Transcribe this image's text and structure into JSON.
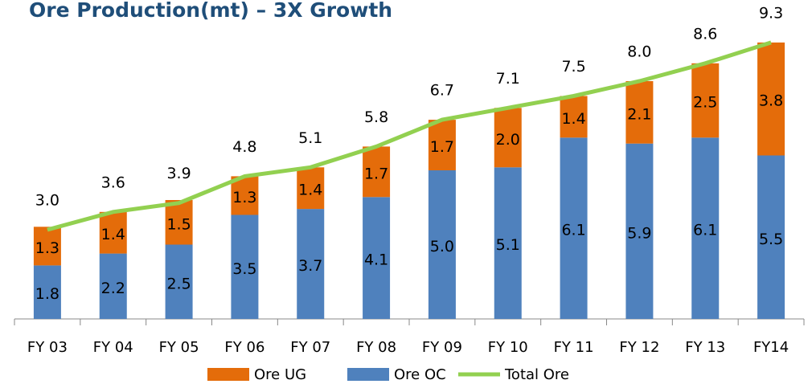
{
  "chart_data": {
    "type": "bar",
    "stacked": true,
    "title": "Ore Production(mt) – 3X Growth",
    "categories": [
      "FY 03",
      "FY 04",
      "FY 05",
      "FY 06",
      "FY 07",
      "FY 08",
      "FY 09",
      "FY 10",
      "FY 11",
      "FY 12",
      "FY 13",
      "FY14"
    ],
    "series": [
      {
        "name": "Ore UG",
        "type": "bar",
        "color": "#e46c0a",
        "values": [
          1.3,
          1.4,
          1.5,
          1.3,
          1.4,
          1.7,
          1.7,
          2.0,
          1.4,
          2.1,
          2.5,
          3.8
        ],
        "value_labels": [
          "1.3",
          "1.4",
          "1.5",
          "1.3",
          "1.4",
          "1.7",
          "1.7",
          "2.0",
          "1.4",
          "2.1",
          "2.5",
          "3.8"
        ]
      },
      {
        "name": "Ore OC",
        "type": "bar",
        "color": "#4f81bd",
        "values": [
          1.8,
          2.2,
          2.5,
          3.5,
          3.7,
          4.1,
          5.0,
          5.1,
          6.1,
          5.9,
          6.1,
          5.5
        ],
        "value_labels": [
          "1.8",
          "2.2",
          "2.5",
          "3.5",
          "3.7",
          "4.1",
          "5.0",
          "5.1",
          "6.1",
          "5.9",
          "6.1",
          "5.5"
        ]
      },
      {
        "name": "Total Ore",
        "type": "line",
        "color": "#92d050",
        "values": [
          3.0,
          3.6,
          3.9,
          4.8,
          5.1,
          5.8,
          6.7,
          7.1,
          7.5,
          8.0,
          8.6,
          9.3
        ],
        "value_labels": [
          "3.0",
          "3.6",
          "3.9",
          "4.8",
          "5.1",
          "5.8",
          "6.7",
          "7.1",
          "7.5",
          "8.0",
          "8.6",
          "9.3"
        ]
      }
    ],
    "ylim": [
      0,
      10
    ],
    "legend": "bottom"
  }
}
